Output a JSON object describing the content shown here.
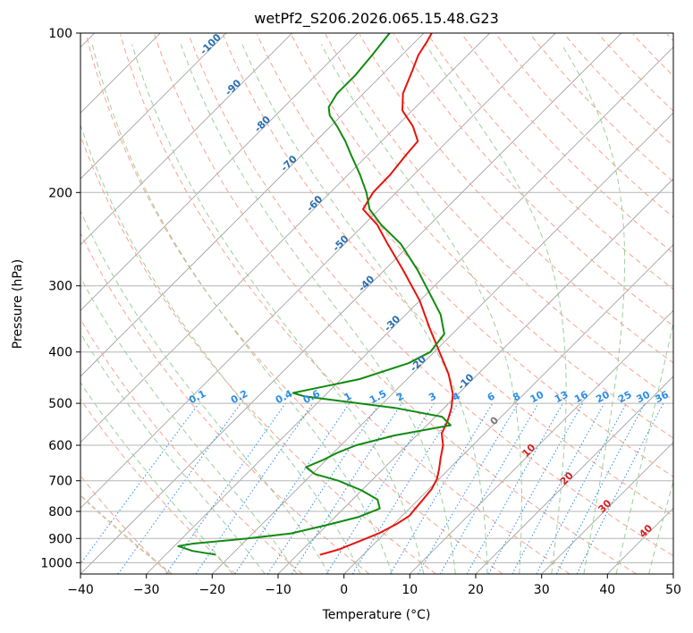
{
  "colors": {
    "temperature": "#e8120c",
    "dewpoint": "#118a11",
    "isotherm": "#9a9a9a",
    "dry_adiabat": "#f7a38c",
    "moist_adiabat": "#9ccf9c",
    "mixing_ratio": "#2a8de8",
    "mixing_label": "#2a8de8",
    "isotherm_label": "#2a6fb0",
    "ccl_label": "#d62020",
    "zero_label": "#777777",
    "grid": "#b5b5b5",
    "saturated_curve": "#d9c4a6"
  },
  "chart_data": {
    "type": "line",
    "title": "wetPf2_S206.2026.065.15.48.G23",
    "xlabel": "Temperature (°C)",
    "ylabel": "Pressure (hPa)",
    "xlim": [
      -40,
      50
    ],
    "ylim": [
      1050,
      100
    ],
    "y_scale": "log",
    "skew": true,
    "grid": true,
    "x_ticks": [
      "−40",
      "−30",
      "−20",
      "−10",
      "0",
      "10",
      "20",
      "30",
      "40",
      "50"
    ],
    "x_tick_values": [
      -40,
      -30,
      -20,
      -10,
      0,
      10,
      20,
      30,
      40,
      50
    ],
    "y_ticks": [
      "100",
      "200",
      "300",
      "400",
      "500",
      "600",
      "700",
      "800",
      "900",
      "1000"
    ],
    "y_tick_values": [
      100,
      200,
      300,
      400,
      500,
      600,
      700,
      800,
      900,
      1000
    ],
    "series": [
      {
        "key": "temperature",
        "points": [
          [
            965,
            -6.5
          ],
          [
            945,
            -4.6
          ],
          [
            910,
            -2.6
          ],
          [
            880,
            -0.9
          ],
          [
            845,
            0.4
          ],
          [
            815,
            1.1
          ],
          [
            790,
            0.9
          ],
          [
            760,
            0.7
          ],
          [
            725,
            0.4
          ],
          [
            695,
            -0.3
          ],
          [
            665,
            -1.5
          ],
          [
            635,
            -2.9
          ],
          [
            600,
            -4.5
          ],
          [
            570,
            -6.5
          ],
          [
            540,
            -7.5
          ],
          [
            510,
            -8.9
          ],
          [
            480,
            -10.8
          ],
          [
            440,
            -14.5
          ],
          [
            400,
            -19.2
          ],
          [
            360,
            -24.4
          ],
          [
            320,
            -30.0
          ],
          [
            280,
            -37.2
          ],
          [
            250,
            -43.5
          ],
          [
            230,
            -48.0
          ],
          [
            215,
            -52.5
          ],
          [
            200,
            -53.5
          ],
          [
            185,
            -53.6
          ],
          [
            170,
            -54.2
          ],
          [
            160,
            -54.5
          ],
          [
            150,
            -57.5
          ],
          [
            140,
            -61.5
          ],
          [
            130,
            -64.0
          ],
          [
            118,
            -66.0
          ],
          [
            110,
            -67.5
          ],
          [
            104,
            -68.2
          ],
          [
            100,
            -68.8
          ]
        ]
      },
      {
        "key": "dewpoint",
        "points": [
          [
            965,
            -22.5
          ],
          [
            950,
            -26.5
          ],
          [
            930,
            -29.4
          ],
          [
            920,
            -27.5
          ],
          [
            900,
            -20.0
          ],
          [
            880,
            -14.2
          ],
          [
            850,
            -10.2
          ],
          [
            820,
            -6.5
          ],
          [
            790,
            -4.5
          ],
          [
            760,
            -6.2
          ],
          [
            730,
            -10.0
          ],
          [
            700,
            -15.0
          ],
          [
            680,
            -19.6
          ],
          [
            660,
            -22.0
          ],
          [
            640,
            -20.5
          ],
          [
            620,
            -19.4
          ],
          [
            600,
            -17.7
          ],
          [
            575,
            -13.4
          ],
          [
            550,
            -6.4
          ],
          [
            530,
            -9.0
          ],
          [
            510,
            -17.5
          ],
          [
            495,
            -26.8
          ],
          [
            485,
            -33.0
          ],
          [
            478,
            -35.2
          ],
          [
            470,
            -33.0
          ],
          [
            450,
            -27.2
          ],
          [
            420,
            -22.2
          ],
          [
            400,
            -20.6
          ],
          [
            370,
            -21.2
          ],
          [
            340,
            -24.7
          ],
          [
            310,
            -29.6
          ],
          [
            280,
            -35.0
          ],
          [
            250,
            -41.5
          ],
          [
            230,
            -47.4
          ],
          [
            215,
            -51.5
          ],
          [
            200,
            -54.5
          ],
          [
            185,
            -58.2
          ],
          [
            170,
            -62.5
          ],
          [
            160,
            -65.5
          ],
          [
            150,
            -69.0
          ],
          [
            143,
            -71.8
          ],
          [
            138,
            -73.2
          ],
          [
            130,
            -74.0
          ],
          [
            120,
            -74.0
          ],
          [
            110,
            -74.5
          ],
          [
            100,
            -75.2
          ]
        ]
      }
    ],
    "isotherm_labels": [
      "-100",
      "-90",
      "-80",
      "-70",
      "-60",
      "-50",
      "-40",
      "-30",
      "-20",
      "-10"
    ],
    "isotherm_label_values": [
      -100,
      -90,
      -80,
      -70,
      -60,
      -50,
      -40,
      -30,
      -20,
      -10
    ],
    "mixing_ratio_labels": [
      "0.1",
      "0.2",
      "0.4",
      "0.6",
      "1",
      "1.5",
      "2",
      "3",
      "4",
      "6",
      "8",
      "10",
      "13",
      "16",
      "20",
      "25",
      "30",
      "36"
    ],
    "mixing_ratio_values": [
      0.1,
      0.2,
      0.4,
      0.6,
      1,
      1.5,
      2,
      3,
      4,
      6,
      8,
      10,
      13,
      16,
      20,
      25,
      30,
      36
    ],
    "zero_label": "0",
    "ccl_labels": [
      "10",
      "20",
      "30",
      "40"
    ]
  }
}
